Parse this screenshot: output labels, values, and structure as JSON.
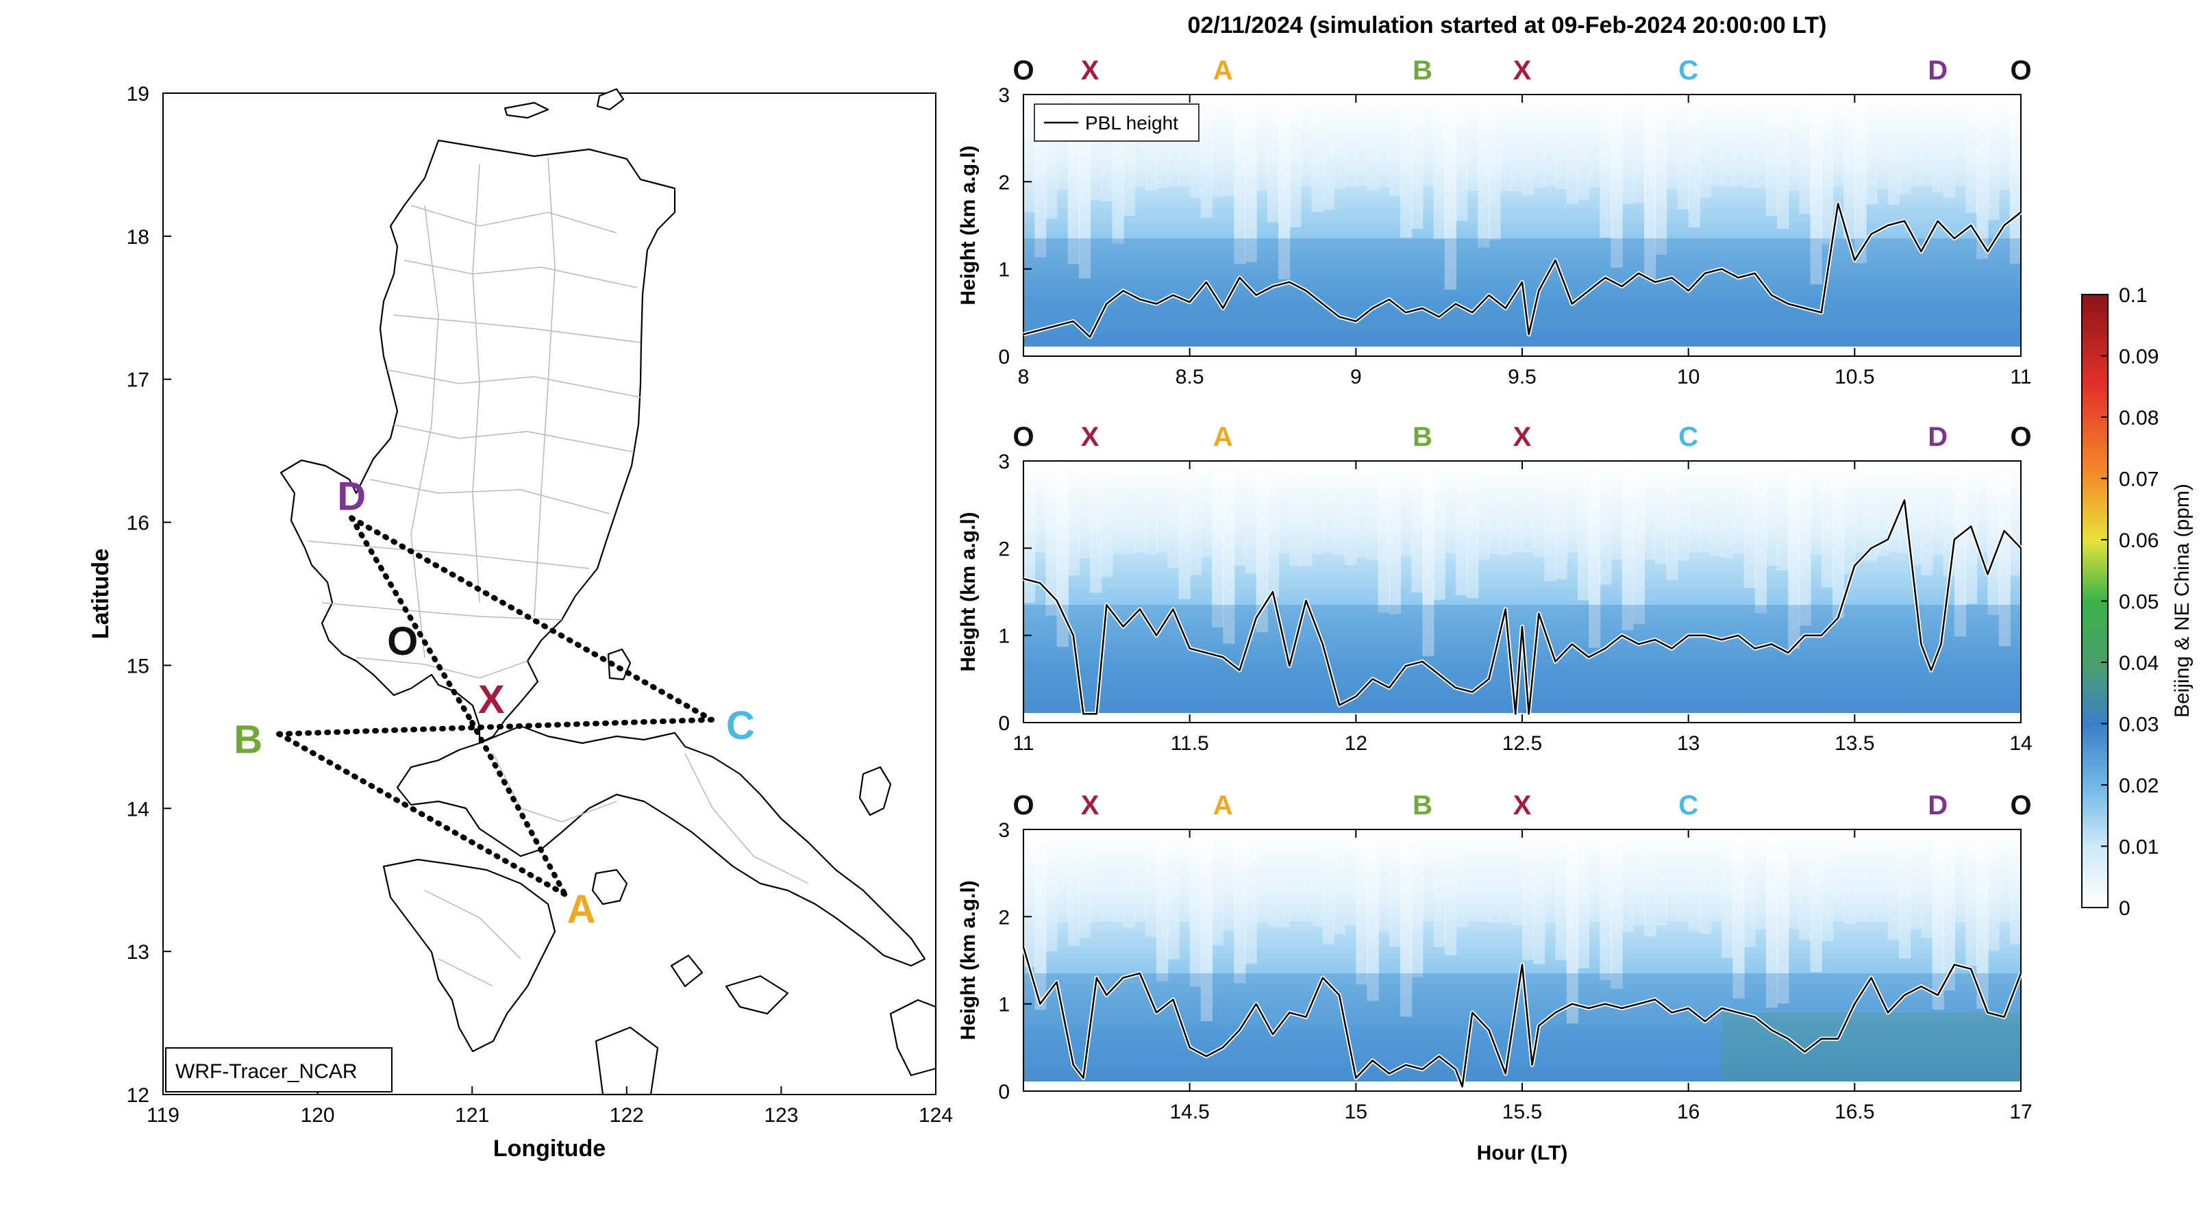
{
  "figure_title": "02/11/2024 (simulation started at 09-Feb-2024 20:00:00 LT)",
  "colors": {
    "site_O": "#111111",
    "site_X": "#a51d3c",
    "site_A": "#f0a820",
    "site_B": "#72a83a",
    "site_C": "#4ab8e6",
    "site_D": "#7d3594",
    "pbl_line": "#000000"
  },
  "chart_data": [
    {
      "type": "map",
      "panel": "map",
      "xlabel": "Longitude",
      "ylabel": "Latitude",
      "xlim": [
        119,
        124
      ],
      "ylim": [
        12,
        19
      ],
      "x_ticks": [
        "119",
        "120",
        "121",
        "122",
        "123",
        "124"
      ],
      "y_ticks": [
        "12",
        "13",
        "14",
        "15",
        "16",
        "17",
        "18",
        "19"
      ],
      "box_label": "WRF-Tracer_NCAR",
      "sites": [
        {
          "name": "D",
          "lon": 120.22,
          "lat": 16.03
        },
        {
          "name": "O",
          "lon": 120.55,
          "lat": 15.17
        },
        {
          "name": "X",
          "lon": 121.0,
          "lat": 14.6
        },
        {
          "name": "B",
          "lon": 119.75,
          "lat": 14.52
        },
        {
          "name": "C",
          "lon": 122.55,
          "lat": 14.62
        },
        {
          "name": "A",
          "lon": 121.6,
          "lat": 13.4
        }
      ],
      "legs": [
        [
          "D",
          "C"
        ],
        [
          "D",
          "X"
        ],
        [
          "X",
          "A"
        ],
        [
          "B",
          "A"
        ],
        [
          "B",
          "C"
        ]
      ]
    },
    {
      "type": "heatmap",
      "panel": "curtain-1",
      "ylabel": "Height (km a.g.l)",
      "xlim": [
        8,
        11
      ],
      "ylim": [
        0,
        3
      ],
      "x_ticks": [
        "8",
        "8.5",
        "9",
        "9.5",
        "10",
        "10.5",
        "11"
      ],
      "y_ticks": [
        "0",
        "1",
        "2",
        "3"
      ],
      "legend": "PBL height",
      "site_marks": [
        {
          "name": "O",
          "hour": 8.0
        },
        {
          "name": "X",
          "hour": 8.2
        },
        {
          "name": "A",
          "hour": 8.6
        },
        {
          "name": "B",
          "hour": 9.2
        },
        {
          "name": "X",
          "hour": 9.5
        },
        {
          "name": "C",
          "hour": 10.0
        },
        {
          "name": "D",
          "hour": 10.75
        },
        {
          "name": "O",
          "hour": 11.0
        }
      ],
      "pbl": {
        "hour": [
          8.0,
          8.05,
          8.1,
          8.15,
          8.2,
          8.25,
          8.3,
          8.35,
          8.4,
          8.45,
          8.5,
          8.55,
          8.6,
          8.65,
          8.7,
          8.75,
          8.8,
          8.85,
          8.9,
          8.95,
          9.0,
          9.05,
          9.1,
          9.15,
          9.2,
          9.25,
          9.3,
          9.35,
          9.4,
          9.45,
          9.5,
          9.52,
          9.55,
          9.6,
          9.65,
          9.7,
          9.75,
          9.8,
          9.85,
          9.9,
          9.95,
          10.0,
          10.05,
          10.1,
          10.15,
          10.2,
          10.25,
          10.3,
          10.35,
          10.4,
          10.45,
          10.5,
          10.55,
          10.6,
          10.65,
          10.7,
          10.75,
          10.8,
          10.85,
          10.9,
          10.95,
          11.0
        ],
        "height": [
          0.25,
          0.3,
          0.35,
          0.4,
          0.22,
          0.6,
          0.75,
          0.65,
          0.6,
          0.7,
          0.62,
          0.85,
          0.55,
          0.9,
          0.7,
          0.8,
          0.85,
          0.75,
          0.6,
          0.45,
          0.4,
          0.55,
          0.65,
          0.5,
          0.55,
          0.45,
          0.6,
          0.5,
          0.7,
          0.55,
          0.85,
          0.25,
          0.75,
          1.1,
          0.6,
          0.75,
          0.9,
          0.8,
          0.95,
          0.85,
          0.9,
          0.75,
          0.95,
          1.0,
          0.9,
          0.95,
          0.7,
          0.6,
          0.55,
          0.5,
          1.75,
          1.1,
          1.4,
          1.5,
          1.55,
          1.2,
          1.55,
          1.35,
          1.5,
          1.2,
          1.5,
          1.65
        ]
      }
    },
    {
      "type": "heatmap",
      "panel": "curtain-2",
      "ylabel": "Height (km a.g.l)",
      "xlim": [
        11,
        14
      ],
      "ylim": [
        0,
        3
      ],
      "x_ticks": [
        "11",
        "11.5",
        "12",
        "12.5",
        "13",
        "13.5",
        "14"
      ],
      "y_ticks": [
        "0",
        "1",
        "2",
        "3"
      ],
      "site_marks": [
        {
          "name": "O",
          "hour": 11.0
        },
        {
          "name": "X",
          "hour": 11.2
        },
        {
          "name": "A",
          "hour": 11.6
        },
        {
          "name": "B",
          "hour": 12.2
        },
        {
          "name": "X",
          "hour": 12.5
        },
        {
          "name": "C",
          "hour": 13.0
        },
        {
          "name": "D",
          "hour": 13.75
        },
        {
          "name": "O",
          "hour": 14.0
        }
      ],
      "pbl": {
        "hour": [
          11.0,
          11.05,
          11.1,
          11.15,
          11.18,
          11.22,
          11.25,
          11.3,
          11.35,
          11.4,
          11.45,
          11.5,
          11.55,
          11.6,
          11.65,
          11.7,
          11.75,
          11.8,
          11.85,
          11.9,
          11.95,
          12.0,
          12.05,
          12.1,
          12.15,
          12.2,
          12.25,
          12.3,
          12.35,
          12.4,
          12.45,
          12.48,
          12.5,
          12.52,
          12.55,
          12.6,
          12.65,
          12.7,
          12.75,
          12.8,
          12.85,
          12.9,
          12.95,
          13.0,
          13.05,
          13.1,
          13.15,
          13.2,
          13.25,
          13.3,
          13.35,
          13.4,
          13.45,
          13.5,
          13.55,
          13.6,
          13.65,
          13.7,
          13.73,
          13.76,
          13.8,
          13.85,
          13.9,
          13.95,
          14.0
        ],
        "height": [
          1.65,
          1.6,
          1.4,
          1.0,
          0.1,
          0.1,
          1.35,
          1.1,
          1.3,
          1.0,
          1.3,
          0.85,
          0.8,
          0.75,
          0.6,
          1.2,
          1.5,
          0.65,
          1.4,
          0.9,
          0.2,
          0.3,
          0.5,
          0.4,
          0.65,
          0.7,
          0.55,
          0.4,
          0.35,
          0.5,
          1.3,
          0.1,
          1.1,
          0.1,
          1.25,
          0.7,
          0.9,
          0.75,
          0.85,
          1.0,
          0.9,
          0.95,
          0.85,
          1.0,
          1.0,
          0.95,
          1.0,
          0.85,
          0.9,
          0.8,
          1.0,
          1.0,
          1.2,
          1.8,
          2.0,
          2.1,
          2.55,
          0.9,
          0.6,
          0.9,
          2.1,
          2.25,
          1.7,
          2.2,
          2.0
        ]
      }
    },
    {
      "type": "heatmap",
      "panel": "curtain-3",
      "xlabel": "Hour (LT)",
      "ylabel": "Height (km a.g.l)",
      "xlim": [
        14,
        17
      ],
      "ylim": [
        0,
        3
      ],
      "x_ticks": [
        "14.5",
        "15",
        "15.5",
        "16",
        "16.5",
        "17"
      ],
      "y_ticks": [
        "0",
        "1",
        "2",
        "3"
      ],
      "site_marks": [
        {
          "name": "O",
          "hour": 14.0
        },
        {
          "name": "X",
          "hour": 14.2
        },
        {
          "name": "A",
          "hour": 14.6
        },
        {
          "name": "B",
          "hour": 15.2
        },
        {
          "name": "X",
          "hour": 15.5
        },
        {
          "name": "C",
          "hour": 16.0
        },
        {
          "name": "D",
          "hour": 16.75
        },
        {
          "name": "O",
          "hour": 17.0
        }
      ],
      "pbl": {
        "hour": [
          14.0,
          14.05,
          14.1,
          14.15,
          14.18,
          14.22,
          14.25,
          14.3,
          14.35,
          14.4,
          14.45,
          14.5,
          14.55,
          14.6,
          14.65,
          14.7,
          14.75,
          14.8,
          14.85,
          14.9,
          14.95,
          15.0,
          15.05,
          15.1,
          15.15,
          15.2,
          15.25,
          15.3,
          15.32,
          15.35,
          15.4,
          15.45,
          15.5,
          15.53,
          15.55,
          15.6,
          15.65,
          15.7,
          15.75,
          15.8,
          15.85,
          15.9,
          15.95,
          16.0,
          16.05,
          16.1,
          16.15,
          16.2,
          16.25,
          16.3,
          16.35,
          16.4,
          16.45,
          16.5,
          16.55,
          16.6,
          16.65,
          16.7,
          16.75,
          16.8,
          16.85,
          16.9,
          16.95,
          17.0
        ],
        "height": [
          1.65,
          1.0,
          1.25,
          0.3,
          0.15,
          1.3,
          1.1,
          1.3,
          1.35,
          0.9,
          1.05,
          0.5,
          0.4,
          0.5,
          0.7,
          1.0,
          0.65,
          0.9,
          0.85,
          1.3,
          1.1,
          0.15,
          0.35,
          0.2,
          0.3,
          0.25,
          0.4,
          0.25,
          0.05,
          0.9,
          0.7,
          0.2,
          1.45,
          0.3,
          0.75,
          0.9,
          1.0,
          0.95,
          1.0,
          0.95,
          1.0,
          1.05,
          0.9,
          0.95,
          0.8,
          0.95,
          0.9,
          0.85,
          0.7,
          0.6,
          0.45,
          0.6,
          0.6,
          1.0,
          1.3,
          0.9,
          1.1,
          1.2,
          1.1,
          1.45,
          1.4,
          0.9,
          0.85,
          1.35
        ]
      }
    }
  ],
  "colorbar": {
    "label": "Beijing & NE China (ppm)",
    "ticks": [
      "0",
      "0.01",
      "0.02",
      "0.03",
      "0.04",
      "0.05",
      "0.06",
      "0.07",
      "0.08",
      "0.09",
      "0.1"
    ],
    "range": [
      0,
      0.1
    ],
    "stops": [
      "#ffffff",
      "#cce9f7",
      "#6fb6e6",
      "#3a80c8",
      "#4aa06a",
      "#3ab24a",
      "#e8e23a",
      "#f3902a",
      "#e2322a",
      "#8c1418"
    ]
  }
}
